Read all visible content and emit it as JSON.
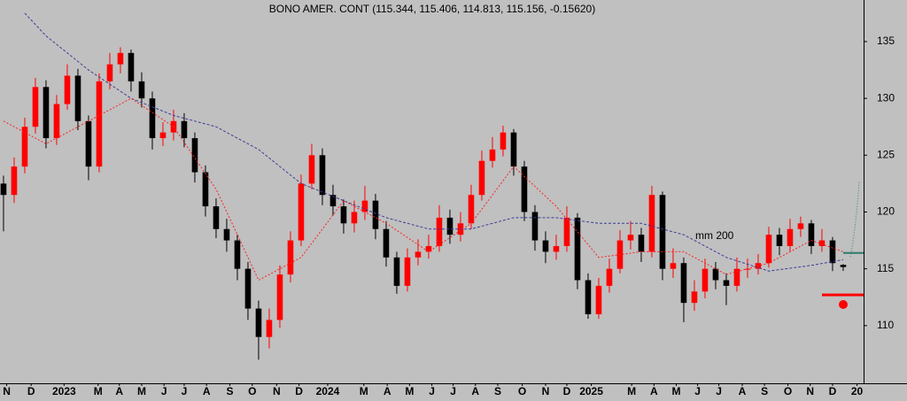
{
  "chart_data": {
    "type": "candlestick",
    "title": "BONO AMER. CONT (115.344, 115.406, 114.813, 115.156, -0.15620)",
    "up_color": "#ff0000",
    "down_color": "#000000",
    "open": [
      122.5,
      121.5,
      124,
      127.5,
      131,
      126.5,
      129.5,
      132,
      128,
      124,
      131.5,
      133,
      134,
      131.5,
      130,
      126.5,
      127,
      128,
      126.5,
      123.5,
      120.5,
      118.5,
      117.5,
      115,
      111.5,
      109,
      110.5,
      114.5,
      117.5,
      122.5,
      125,
      121.5,
      120.5,
      119,
      120,
      121,
      118.5,
      116,
      113.5,
      116,
      116.5,
      117,
      119.5,
      118,
      119,
      121.5,
      124.5,
      125.5,
      127,
      124,
      120,
      117.5,
      116.5,
      117,
      119.5,
      114,
      111,
      113.5,
      115,
      117.5,
      118,
      116.5,
      121.5,
      115,
      115.5,
      112,
      113,
      115,
      114,
      113.5,
      115,
      115,
      115.5,
      118,
      117,
      118.5,
      119,
      117,
      117.5,
      115.344
    ],
    "high": [
      123.2,
      124.8,
      128.3,
      131.8,
      131.6,
      130.3,
      133,
      132.6,
      128.5,
      132.2,
      134,
      134.5,
      134.3,
      132.3,
      130.6,
      127.9,
      129,
      128.7,
      127,
      124.1,
      121.2,
      119.4,
      118,
      115.6,
      112.2,
      111.5,
      115.3,
      118.3,
      123.3,
      126,
      125.6,
      122.4,
      121.1,
      121,
      122.3,
      121.6,
      119.2,
      116.5,
      116.8,
      117.6,
      118,
      120.6,
      120.2,
      120,
      122.4,
      125.4,
      126.6,
      127.6,
      127.3,
      124.5,
      120.6,
      118.3,
      118,
      120.5,
      119.9,
      114.6,
      114.2,
      115.9,
      118.4,
      119.2,
      118.6,
      122.3,
      121.8,
      116.8,
      116,
      114,
      115.9,
      115.6,
      114.6,
      116,
      115.9,
      116.3,
      118.7,
      118.6,
      119.4,
      119.6,
      119.3,
      118.5,
      117.8,
      115.406
    ],
    "low": [
      118.3,
      120.8,
      123.4,
      126.9,
      125.6,
      125.9,
      129,
      127.2,
      122.8,
      123.5,
      130.8,
      132.2,
      130.6,
      129.2,
      125.5,
      125.8,
      126.3,
      125.7,
      122.6,
      119.6,
      117.7,
      116.5,
      114,
      110.5,
      107,
      108,
      109.8,
      113.8,
      117,
      122,
      120.6,
      119.7,
      118.1,
      118.2,
      119.3,
      117.6,
      115.2,
      112.8,
      113,
      115.3,
      115.9,
      116.5,
      117.2,
      117.4,
      118.5,
      121,
      123.9,
      124.9,
      123.2,
      119.2,
      116.6,
      115.5,
      115.8,
      116.5,
      113.2,
      110.6,
      110.6,
      112.9,
      114.6,
      116.7,
      115.6,
      116,
      114,
      114.2,
      110.3,
      111.3,
      112.4,
      113.2,
      111.8,
      113,
      114.2,
      114.5,
      115.1,
      116.2,
      116.5,
      117.8,
      116.3,
      116.5,
      114.8,
      114.813
    ],
    "close": [
      121.5,
      124,
      127.5,
      131,
      126.5,
      129.5,
      132,
      128,
      124,
      131.5,
      133,
      134,
      131.5,
      130,
      126.5,
      127,
      128,
      126.5,
      123.5,
      120.5,
      118.5,
      117.5,
      115,
      111.5,
      109,
      110.5,
      114.5,
      117.5,
      122.5,
      125,
      121.5,
      120.5,
      119,
      120,
      121,
      118.5,
      116,
      113.5,
      116,
      116.5,
      117,
      119.5,
      118,
      119,
      121.5,
      124.5,
      125.5,
      127,
      124,
      120,
      117.5,
      116.5,
      117,
      119.5,
      114,
      111,
      113.5,
      115,
      117.5,
      118,
      116.5,
      121.5,
      115,
      115.5,
      112,
      113,
      115,
      114,
      113.5,
      115,
      115,
      115.5,
      118,
      117,
      118.5,
      119,
      117,
      117.5,
      115.5,
      115.156
    ],
    "series": [
      {
        "name": "mm 200",
        "color": "#3c3c9a",
        "x": [
          2,
          4,
          8,
          12,
          16,
          20,
          24,
          28,
          32,
          36,
          40,
          44,
          48,
          52,
          56,
          60,
          64,
          68,
          72,
          76,
          79
        ],
        "values": [
          137.5,
          135.5,
          132.5,
          130,
          128.5,
          127.5,
          125.5,
          122.5,
          121,
          119.5,
          118.5,
          118.5,
          119.5,
          119.5,
          119,
          119,
          118,
          116,
          114.8,
          115.3,
          115.8
        ]
      },
      {
        "color": "#ff2020",
        "x": [
          0,
          4,
          8,
          12,
          16,
          20,
          24,
          28,
          32,
          36,
          40,
          44,
          48,
          52,
          56,
          60,
          64,
          68,
          72,
          76,
          79
        ],
        "values": [
          128,
          126,
          128,
          130,
          127.5,
          122,
          114,
          116,
          121,
          119,
          116.5,
          119,
          124,
          120.5,
          116,
          116.5,
          116.5,
          114.5,
          115.5,
          117.5,
          116.5
        ]
      }
    ],
    "levels": [
      {
        "value": 116.4,
        "color": "#2e7b6b"
      },
      {
        "value": 112.7,
        "color": "#ff0000"
      }
    ],
    "xlim": [
      -0.33,
      80.92
    ],
    "xticks": [
      {
        "value": 0.3,
        "label": "N"
      },
      {
        "value": 2.6,
        "label": "D"
      },
      {
        "value": 5.7,
        "label": "2023"
      },
      {
        "value": 8.9,
        "label": "M"
      },
      {
        "value": 10.9,
        "label": "A"
      },
      {
        "value": 13,
        "label": "M"
      },
      {
        "value": 15.1,
        "label": "J"
      },
      {
        "value": 17,
        "label": "J"
      },
      {
        "value": 19.1,
        "label": "A"
      },
      {
        "value": 21.3,
        "label": "S"
      },
      {
        "value": 23.4,
        "label": "O"
      },
      {
        "value": 25.7,
        "label": "N"
      },
      {
        "value": 27.8,
        "label": "D"
      },
      {
        "value": 30.5,
        "label": "2024"
      },
      {
        "value": 33.9,
        "label": "M"
      },
      {
        "value": 36.1,
        "label": "A"
      },
      {
        "value": 38.2,
        "label": "M"
      },
      {
        "value": 40.3,
        "label": "J"
      },
      {
        "value": 42.3,
        "label": "J"
      },
      {
        "value": 44.4,
        "label": "A"
      },
      {
        "value": 46.5,
        "label": "S"
      },
      {
        "value": 48.8,
        "label": "O"
      },
      {
        "value": 51,
        "label": "N"
      },
      {
        "value": 53,
        "label": "D"
      },
      {
        "value": 55.3,
        "label": "2025"
      },
      {
        "value": 59.1,
        "label": "M"
      },
      {
        "value": 61.2,
        "label": "A"
      },
      {
        "value": 63.3,
        "label": "M"
      },
      {
        "value": 65.3,
        "label": "J"
      },
      {
        "value": 67.3,
        "label": "J"
      },
      {
        "value": 69.5,
        "label": "A"
      },
      {
        "value": 71.6,
        "label": "S"
      },
      {
        "value": 73.8,
        "label": "O"
      },
      {
        "value": 75.9,
        "label": "N"
      },
      {
        "value": 78,
        "label": "D"
      },
      {
        "value": 80.3,
        "label": "20"
      }
    ],
    "ylim": [
      105,
      138.66
    ],
    "yticks": [
      110,
      115,
      120,
      125,
      130,
      135
    ]
  }
}
